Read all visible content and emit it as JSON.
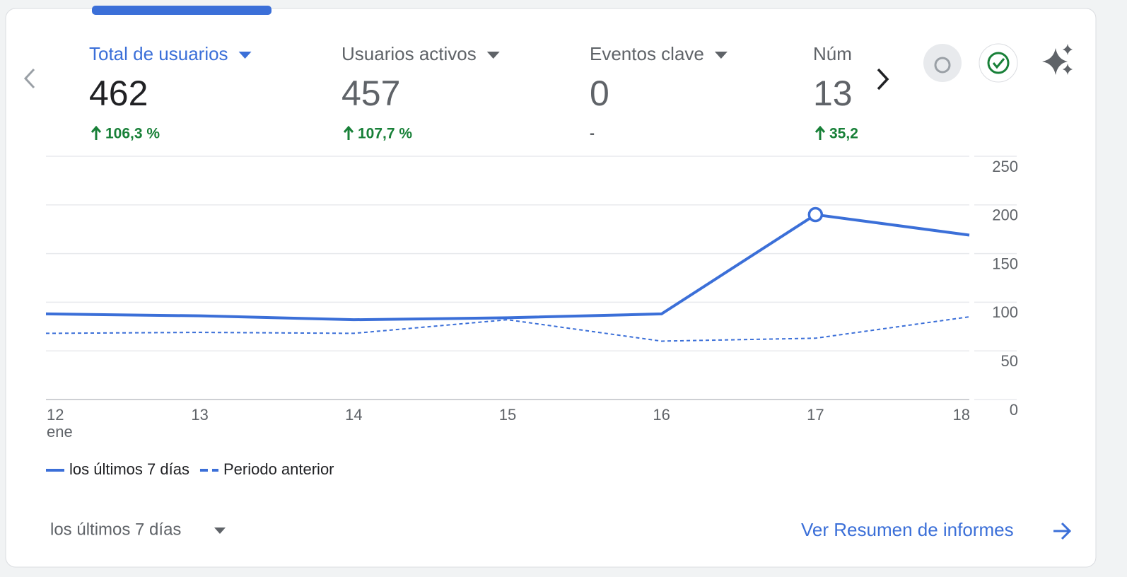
{
  "metrics": [
    {
      "label": "Total de usuarios",
      "value": 462,
      "change": "106,3 %"
    },
    {
      "label": "Usuarios activos",
      "value": 457,
      "change": "107,7 %"
    },
    {
      "label": "Eventos clave",
      "value": 0,
      "change": "-"
    },
    {
      "label": "Núm",
      "value": 13,
      "change": "35,2"
    }
  ],
  "chart_data": {
    "type": "line",
    "categories": [
      "12",
      "13",
      "14",
      "15",
      "16",
      "17",
      "18"
    ],
    "month_label": "ene",
    "series": [
      {
        "name": "los últimos 7 días",
        "color": "#3b6fd8",
        "style": "solid",
        "values": [
          88,
          86,
          82,
          84,
          88,
          190,
          169
        ]
      },
      {
        "name": "Periodo anterior",
        "color": "#3b6fd8",
        "style": "dashed",
        "values": [
          68,
          69,
          68,
          82,
          60,
          63,
          85
        ]
      }
    ],
    "ylim": [
      0,
      250
    ],
    "yticks": [
      0,
      50,
      100,
      150,
      200,
      250
    ],
    "grid": true
  },
  "footer": {
    "period": "los últimos 7 días",
    "link": "Ver Resumen de informes"
  }
}
